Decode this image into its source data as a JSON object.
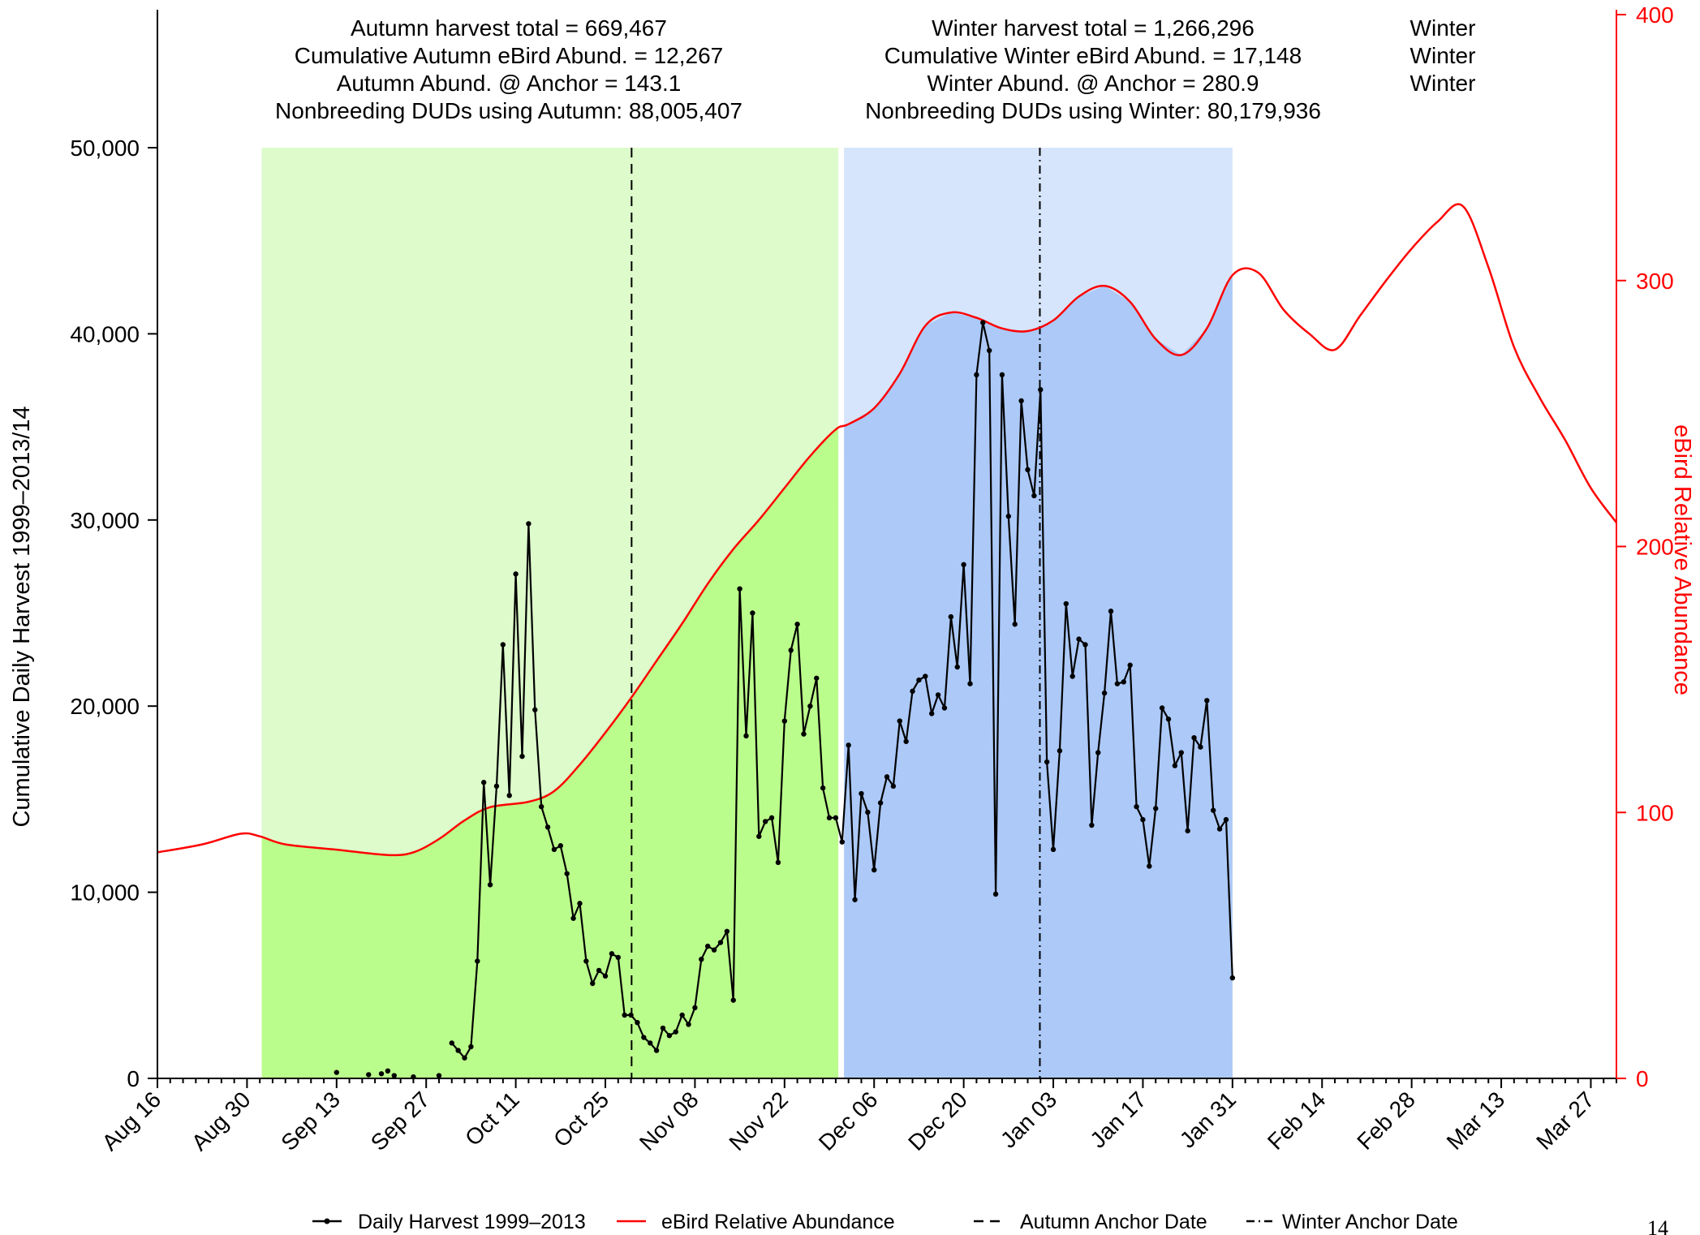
{
  "annotations": {
    "autumn": [
      "Autumn harvest total =  669,467",
      "Cumulative Autumn eBird Abund. =  12,267",
      "Autumn Abund. @ Anchor =  143.1",
      "Nonbreeding DUDs using Autumn: 88,005,407"
    ],
    "winter": [
      "Winter harvest total =  1,266,296",
      "Cumulative Winter eBird Abund. =  17,148",
      "Winter Abund. @ Anchor =  280.9",
      "Nonbreeding DUDs using Winter: 80,179,936"
    ],
    "winter_labels": [
      "Winter",
      "Winter",
      "Winter"
    ]
  },
  "page_number": "14",
  "colors": {
    "autumn_light": "#ddfbcb",
    "autumn_dark": "#bbfd8c",
    "winter_light": "#d6e5fb",
    "winter_dark": "#acc9f8",
    "harvest": "#000000",
    "ebird": "#ff0000"
  },
  "chart_data": {
    "type": "line",
    "title": "",
    "xlabel": "",
    "ylabel": "Cumulative Daily Harvest 1999–2013/14",
    "y2label": "eBird Relative Abundance",
    "x_domain_days": [
      0,
      228
    ],
    "ylim": [
      0,
      50000
    ],
    "y2lim": [
      0,
      400
    ],
    "x_ticks": [
      {
        "day": 0,
        "label": "Aug 16"
      },
      {
        "day": 14,
        "label": "Aug 30"
      },
      {
        "day": 28,
        "label": "Sep 13"
      },
      {
        "day": 42,
        "label": "Sep 27"
      },
      {
        "day": 56,
        "label": "Oct 11"
      },
      {
        "day": 70,
        "label": "Oct 25"
      },
      {
        "day": 84,
        "label": "Nov 08"
      },
      {
        "day": 98,
        "label": "Nov 22"
      },
      {
        "day": 112,
        "label": "Dec 06"
      },
      {
        "day": 126,
        "label": "Dec 20"
      },
      {
        "day": 140,
        "label": "Jan 03"
      },
      {
        "day": 154,
        "label": "Jan 17"
      },
      {
        "day": 168,
        "label": "Jan 31"
      },
      {
        "day": 182,
        "label": "Feb 14"
      },
      {
        "day": 196,
        "label": "Feb 28"
      },
      {
        "day": 210,
        "label": "Mar 13"
      },
      {
        "day": 224,
        "label": "Mar 27"
      }
    ],
    "y_ticks": [
      {
        "value": 0,
        "label": "0"
      },
      {
        "value": 10000,
        "label": "10,000"
      },
      {
        "value": 20000,
        "label": "20,000"
      },
      {
        "value": 30000,
        "label": "30,000"
      },
      {
        "value": 40000,
        "label": "40,000"
      },
      {
        "value": 50000,
        "label": "50,000"
      }
    ],
    "y2_ticks": [
      {
        "value": 0,
        "label": "0"
      },
      {
        "value": 100,
        "label": "100"
      },
      {
        "value": 200,
        "label": "200"
      },
      {
        "value": 300,
        "label": "300"
      },
      {
        "value": 400,
        "label": "400"
      }
    ],
    "regions": {
      "autumn": {
        "start_day": 16.3,
        "end_day": 106.4
      },
      "winter": {
        "start_day": 107.3,
        "end_day": 168
      }
    },
    "anchors": {
      "autumn_day": 74.1,
      "winter_day": 137.9
    },
    "series": [
      {
        "name": "Daily Harvest 1999–2013",
        "axis": "left",
        "points": [
          [
            28,
            320
          ],
          [
            33,
            200
          ],
          [
            35,
            250
          ],
          [
            36,
            400
          ],
          [
            37,
            150
          ],
          [
            40,
            80
          ],
          [
            44,
            150
          ],
          [
            46,
            1900
          ],
          [
            47,
            1500
          ],
          [
            48,
            1100
          ],
          [
            49,
            1700
          ],
          [
            50,
            6300
          ],
          [
            51,
            15900
          ],
          [
            52,
            10400
          ],
          [
            53,
            15700
          ],
          [
            54,
            23300
          ],
          [
            55,
            15200
          ],
          [
            56,
            27100
          ],
          [
            57,
            17300
          ],
          [
            58,
            29800
          ],
          [
            59,
            19800
          ],
          [
            60,
            14600
          ],
          [
            61,
            13500
          ],
          [
            62,
            12300
          ],
          [
            63,
            12500
          ],
          [
            64,
            11000
          ],
          [
            65,
            8600
          ],
          [
            66,
            9400
          ],
          [
            67,
            6300
          ],
          [
            68,
            5100
          ],
          [
            69,
            5800
          ],
          [
            70,
            5500
          ],
          [
            71,
            6700
          ],
          [
            72,
            6500
          ],
          [
            73,
            3400
          ],
          [
            74,
            3400
          ],
          [
            75,
            3000
          ],
          [
            76,
            2200
          ],
          [
            77,
            1900
          ],
          [
            78,
            1500
          ],
          [
            79,
            2700
          ],
          [
            80,
            2300
          ],
          [
            81,
            2500
          ],
          [
            82,
            3400
          ],
          [
            83,
            2900
          ],
          [
            84,
            3800
          ],
          [
            85,
            6400
          ],
          [
            86,
            7100
          ],
          [
            87,
            6900
          ],
          [
            88,
            7300
          ],
          [
            89,
            7900
          ],
          [
            90,
            4200
          ],
          [
            91,
            26300
          ],
          [
            92,
            18400
          ],
          [
            93,
            25000
          ],
          [
            94,
            13000
          ],
          [
            95,
            13800
          ],
          [
            96,
            14000
          ],
          [
            97,
            11600
          ],
          [
            98,
            19200
          ],
          [
            99,
            23000
          ],
          [
            100,
            24400
          ],
          [
            101,
            18500
          ],
          [
            102,
            20000
          ],
          [
            103,
            21500
          ],
          [
            104,
            15600
          ],
          [
            105,
            14000
          ],
          [
            106,
            14000
          ],
          [
            107,
            12700
          ],
          [
            108,
            17900
          ],
          [
            109,
            9600
          ],
          [
            110,
            15300
          ],
          [
            111,
            14300
          ],
          [
            112,
            11200
          ],
          [
            113,
            14800
          ],
          [
            114,
            16200
          ],
          [
            115,
            15700
          ],
          [
            116,
            19200
          ],
          [
            117,
            18100
          ],
          [
            118,
            20800
          ],
          [
            119,
            21400
          ],
          [
            120,
            21600
          ],
          [
            121,
            19600
          ],
          [
            122,
            20600
          ],
          [
            123,
            19900
          ],
          [
            124,
            24800
          ],
          [
            125,
            22100
          ],
          [
            126,
            27600
          ],
          [
            127,
            21200
          ],
          [
            128,
            37800
          ],
          [
            129,
            40600
          ],
          [
            130,
            39100
          ],
          [
            131,
            9900
          ],
          [
            132,
            37800
          ],
          [
            133,
            30200
          ],
          [
            134,
            24400
          ],
          [
            135,
            36400
          ],
          [
            136,
            32700
          ],
          [
            137,
            31300
          ],
          [
            138,
            37000
          ],
          [
            139,
            17000
          ],
          [
            140,
            12300
          ],
          [
            141,
            17600
          ],
          [
            142,
            25500
          ],
          [
            143,
            21600
          ],
          [
            144,
            23600
          ],
          [
            145,
            23300
          ],
          [
            146,
            13600
          ],
          [
            147,
            17500
          ],
          [
            148,
            20700
          ],
          [
            149,
            25100
          ],
          [
            150,
            21200
          ],
          [
            151,
            21300
          ],
          [
            152,
            22200
          ],
          [
            153,
            14600
          ],
          [
            154,
            13900
          ],
          [
            155,
            11400
          ],
          [
            156,
            14500
          ],
          [
            157,
            19900
          ],
          [
            158,
            19300
          ],
          [
            159,
            16800
          ],
          [
            160,
            17500
          ],
          [
            161,
            13300
          ],
          [
            162,
            18300
          ],
          [
            163,
            17800
          ],
          [
            164,
            20300
          ],
          [
            165,
            14400
          ],
          [
            166,
            13400
          ],
          [
            167,
            13900
          ],
          [
            168,
            5400
          ]
        ]
      },
      {
        "name": "eBird Relative Abundance",
        "axis": "right",
        "points": [
          [
            0,
            85
          ],
          [
            7,
            88
          ],
          [
            13,
            92
          ],
          [
            16,
            91
          ],
          [
            20,
            88
          ],
          [
            28,
            86
          ],
          [
            36,
            84
          ],
          [
            40,
            85
          ],
          [
            44,
            90
          ],
          [
            48,
            97
          ],
          [
            52,
            102
          ],
          [
            58,
            104
          ],
          [
            62,
            108
          ],
          [
            66,
            118
          ],
          [
            70,
            130
          ],
          [
            74,
            143
          ],
          [
            78,
            157
          ],
          [
            82,
            171
          ],
          [
            86,
            186
          ],
          [
            90,
            199
          ],
          [
            94,
            210
          ],
          [
            98,
            222
          ],
          [
            102,
            234
          ],
          [
            106,
            244
          ],
          [
            108,
            246
          ],
          [
            112,
            252
          ],
          [
            116,
            265
          ],
          [
            120,
            283
          ],
          [
            124,
            288
          ],
          [
            128,
            286
          ],
          [
            132,
            282
          ],
          [
            136,
            281
          ],
          [
            140,
            285
          ],
          [
            144,
            294
          ],
          [
            148,
            298
          ],
          [
            152,
            292
          ],
          [
            156,
            278
          ],
          [
            160,
            272
          ],
          [
            164,
            282
          ],
          [
            168,
            302
          ],
          [
            172,
            303
          ],
          [
            176,
            289
          ],
          [
            180,
            280
          ],
          [
            184,
            274
          ],
          [
            188,
            287
          ],
          [
            192,
            300
          ],
          [
            196,
            312
          ],
          [
            200,
            322
          ],
          [
            204,
            328
          ],
          [
            208,
            305
          ],
          [
            212,
            275
          ],
          [
            216,
            256
          ],
          [
            220,
            240
          ],
          [
            224,
            222
          ],
          [
            228,
            209
          ]
        ]
      }
    ],
    "legend": {
      "placement": "bottom",
      "entries": [
        "Daily Harvest 1999–2013",
        "eBird Relative Abundance",
        "Autumn Anchor Date",
        "Winter Anchor Date"
      ]
    }
  }
}
